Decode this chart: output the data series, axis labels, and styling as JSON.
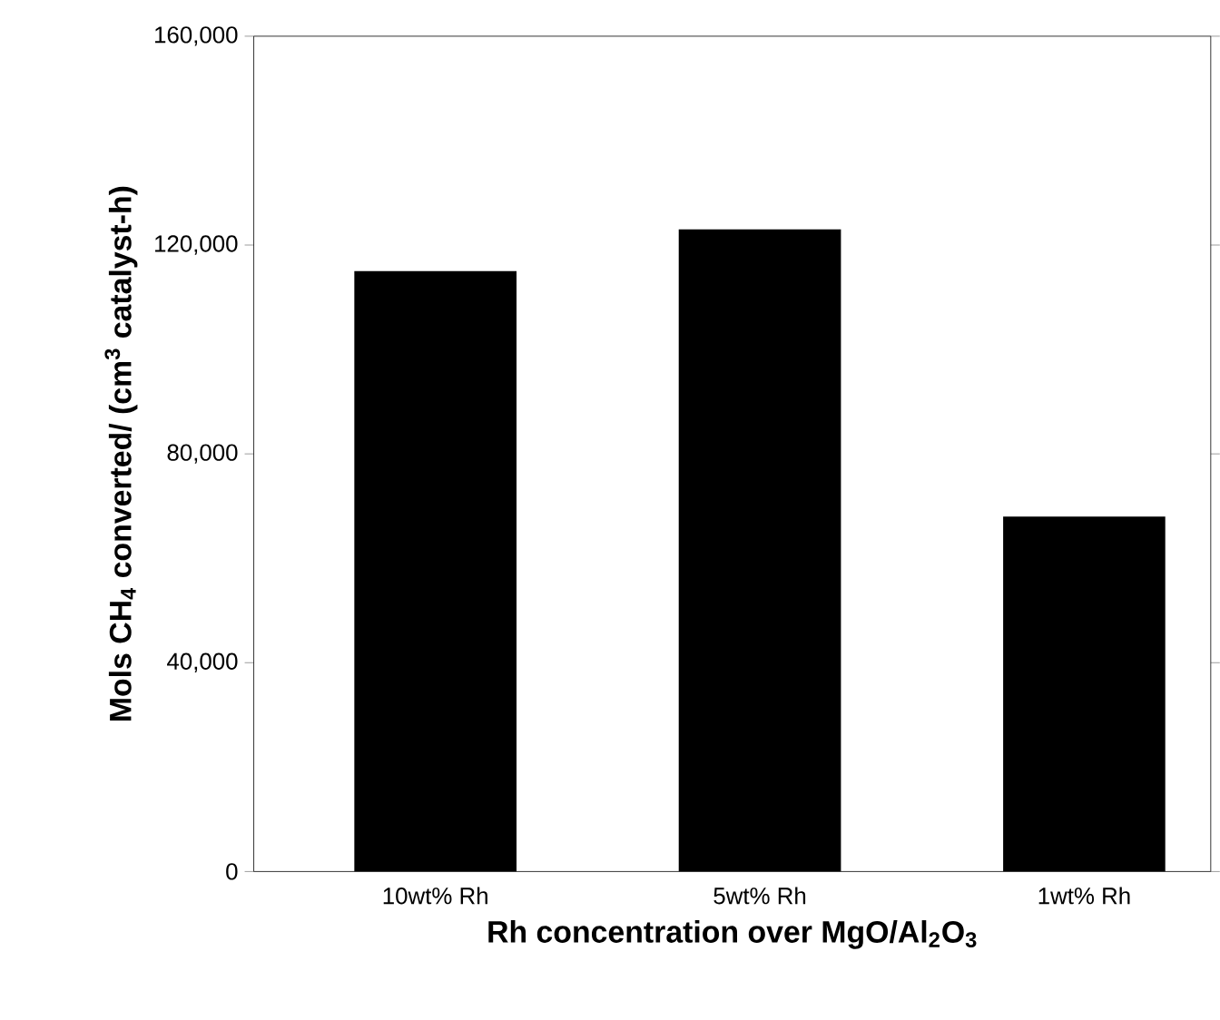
{
  "chart_data": {
    "type": "bar",
    "xlabel": "Rh concentration over MgO/Al$_{2}$O$_{3}$",
    "ylabel": "Mols CH$_{4}$ converted/ (cm$^{3}$ catalyst-h)",
    "categories": [
      "10wt% Rh",
      "5wt% Rh",
      "1wt% Rh"
    ],
    "values": [
      115000,
      123000,
      68000
    ],
    "color": "#000000",
    "ylim": [
      0,
      160000
    ],
    "yticks": [
      {
        "value": 0,
        "label": "0"
      },
      {
        "value": 40000,
        "label": "40,000"
      },
      {
        "value": 80000,
        "label": "80,000"
      },
      {
        "value": 120000,
        "label": "120,000"
      },
      {
        "value": 160000,
        "label": "160,000"
      }
    ]
  }
}
